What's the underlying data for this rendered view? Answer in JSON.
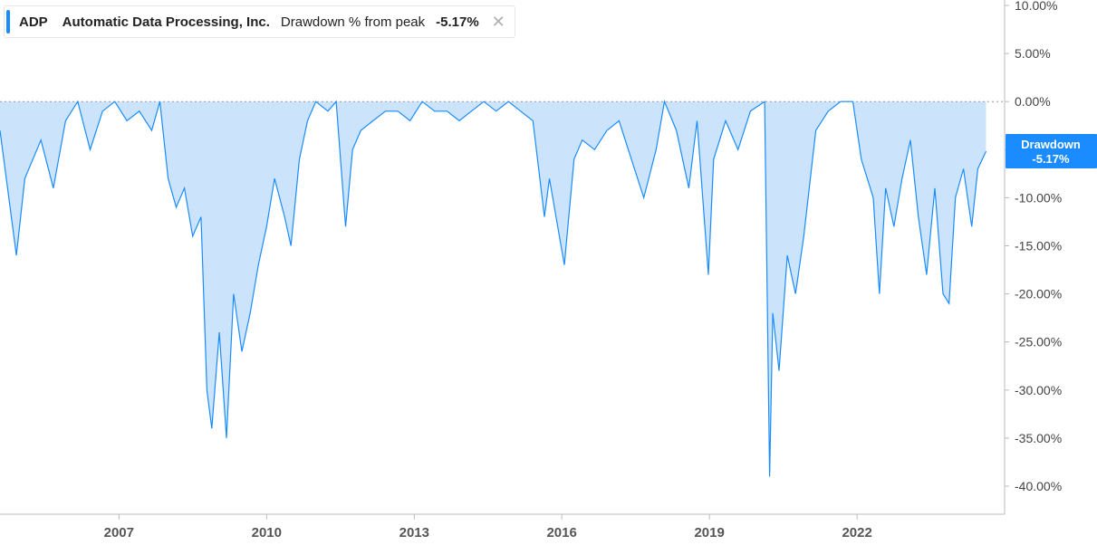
{
  "legend": {
    "ticker": "ADP",
    "company": "Automatic Data Processing, Inc.",
    "metric": "Drawdown % from peak",
    "value": "-5.17%",
    "close_icon": "close-icon"
  },
  "badge": {
    "label": "Drawdown",
    "value": "-5.17%"
  },
  "colors": {
    "line": "#1a8cff",
    "fill": "#cce4fb",
    "axis": "#bbbbbb",
    "zero_line": "#999999",
    "badge_bg": "#1a8cff"
  },
  "chart_data": {
    "type": "area",
    "title": "",
    "xlabel": "",
    "ylabel": "",
    "x_ticks": [
      "2007",
      "2010",
      "2013",
      "2016",
      "2019",
      "2022"
    ],
    "y_ticks": [
      "10.00%",
      "5.00%",
      "0.00%",
      "-5.00%",
      "-10.00%",
      "-15.00%",
      "-20.00%",
      "-25.00%",
      "-30.00%",
      "-35.00%",
      "-40.00%"
    ],
    "y_tick_values": [
      10,
      5,
      0,
      -5,
      -10,
      -15,
      -20,
      -25,
      -30,
      -35,
      -40
    ],
    "ylim": [
      -42,
      10.5
    ],
    "xlim": [
      "2004-08-01",
      "2024-12-31"
    ],
    "grid": false,
    "series": [
      {
        "name": "ADP",
        "x": [
          "2004-08-01",
          "2004-12-01",
          "2005-02-01",
          "2005-06-01",
          "2005-09-01",
          "2005-12-01",
          "2006-03-01",
          "2006-06-01",
          "2006-09-01",
          "2006-12-01",
          "2007-03-01",
          "2007-06-01",
          "2007-09-01",
          "2007-11-01",
          "2008-01-01",
          "2008-03-01",
          "2008-05-01",
          "2008-07-01",
          "2008-09-01",
          "2008-10-15",
          "2008-11-20",
          "2009-01-15",
          "2009-03-09",
          "2009-05-01",
          "2009-07-01",
          "2009-09-01",
          "2009-11-01",
          "2010-01-01",
          "2010-03-01",
          "2010-05-15",
          "2010-07-01",
          "2010-09-01",
          "2010-11-01",
          "2011-01-01",
          "2011-04-01",
          "2011-06-01",
          "2011-08-10",
          "2011-10-01",
          "2011-12-01",
          "2012-03-01",
          "2012-06-01",
          "2012-09-01",
          "2012-12-01",
          "2013-03-01",
          "2013-06-01",
          "2013-09-01",
          "2013-12-01",
          "2014-03-01",
          "2014-06-01",
          "2014-09-01",
          "2014-12-01",
          "2015-03-01",
          "2015-06-01",
          "2015-08-25",
          "2015-10-01",
          "2016-01-20",
          "2016-04-01",
          "2016-06-01",
          "2016-09-01",
          "2016-12-01",
          "2017-03-01",
          "2017-06-01",
          "2017-09-01",
          "2017-12-01",
          "2018-02-01",
          "2018-05-01",
          "2018-08-01",
          "2018-10-01",
          "2018-12-24",
          "2019-02-01",
          "2019-05-01",
          "2019-08-01",
          "2019-11-01",
          "2020-02-15",
          "2020-03-23",
          "2020-04-15",
          "2020-06-01",
          "2020-08-01",
          "2020-10-01",
          "2020-12-01",
          "2021-03-01",
          "2021-06-01",
          "2021-09-01",
          "2021-12-01",
          "2022-02-01",
          "2022-05-01",
          "2022-06-16",
          "2022-08-01",
          "2022-10-01",
          "2022-12-01",
          "2023-02-01",
          "2023-04-01",
          "2023-06-01",
          "2023-08-01",
          "2023-10-01",
          "2023-11-15",
          "2024-01-01",
          "2024-03-01",
          "2024-05-01",
          "2024-06-15",
          "2024-08-15"
        ],
        "values": [
          -3,
          -16,
          -8,
          -4,
          -9,
          -2,
          0,
          -5,
          -1,
          0,
          -2,
          -1,
          -3,
          0,
          -8,
          -11,
          -9,
          -14,
          -12,
          -30,
          -34,
          -24,
          -35,
          -20,
          -26,
          -22,
          -17,
          -13,
          -8,
          -12,
          -15,
          -6,
          -2,
          0,
          -1,
          0,
          -13,
          -5,
          -3,
          -2,
          -1,
          -1,
          -2,
          0,
          -1,
          -1,
          -2,
          -1,
          0,
          -1,
          0,
          -1,
          -2,
          -12,
          -8,
          -17,
          -6,
          -4,
          -5,
          -3,
          -2,
          -6,
          -10,
          -5,
          0,
          -3,
          -9,
          -2,
          -18,
          -6,
          -2,
          -5,
          -1,
          0,
          -39,
          -22,
          -28,
          -16,
          -20,
          -14,
          -3,
          -1,
          0,
          0,
          -6,
          -10,
          -20,
          -9,
          -13,
          -8,
          -4,
          -12,
          -18,
          -9,
          -20,
          -21,
          -10,
          -7,
          -13,
          -7,
          -5.17
        ]
      }
    ]
  }
}
